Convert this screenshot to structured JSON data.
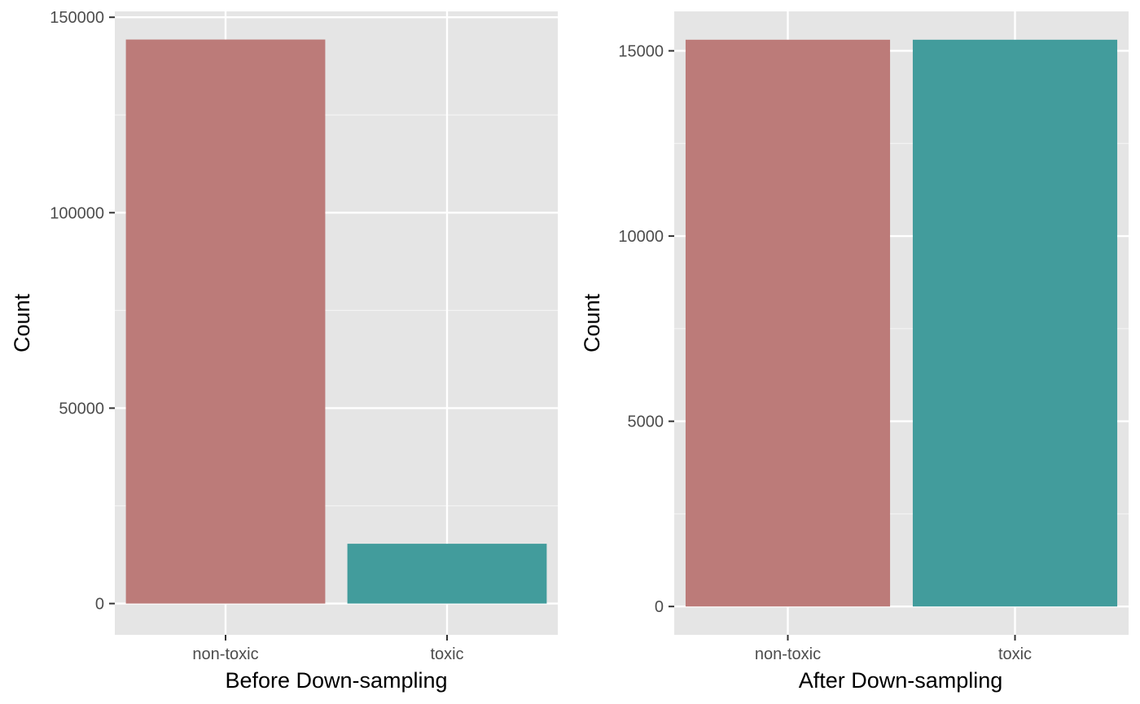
{
  "chart_data": [
    {
      "type": "bar",
      "title": "",
      "xlabel": "Before Down-sampling",
      "ylabel": "Count",
      "categories": [
        "non-toxic",
        "toxic"
      ],
      "values": [
        144300,
        15300
      ],
      "colors": [
        "#BC7B79",
        "#429C9C"
      ],
      "ylim": [
        -8000,
        151500
      ],
      "yticks": [
        0,
        50000,
        100000,
        150000
      ],
      "ytick_labels": [
        "0",
        "50000",
        "100000",
        "150000"
      ],
      "grid": true,
      "legend": "none"
    },
    {
      "type": "bar",
      "title": "",
      "xlabel": "After Down-sampling",
      "ylabel": "Count",
      "categories": [
        "non-toxic",
        "toxic"
      ],
      "values": [
        15300,
        15300
      ],
      "colors": [
        "#BC7B79",
        "#429C9C"
      ],
      "ylim": [
        -765,
        16065
      ],
      "yticks": [
        0,
        5000,
        10000,
        15000
      ],
      "ytick_labels": [
        "0",
        "5000",
        "10000",
        "15000"
      ],
      "grid": true,
      "legend": "none"
    }
  ]
}
